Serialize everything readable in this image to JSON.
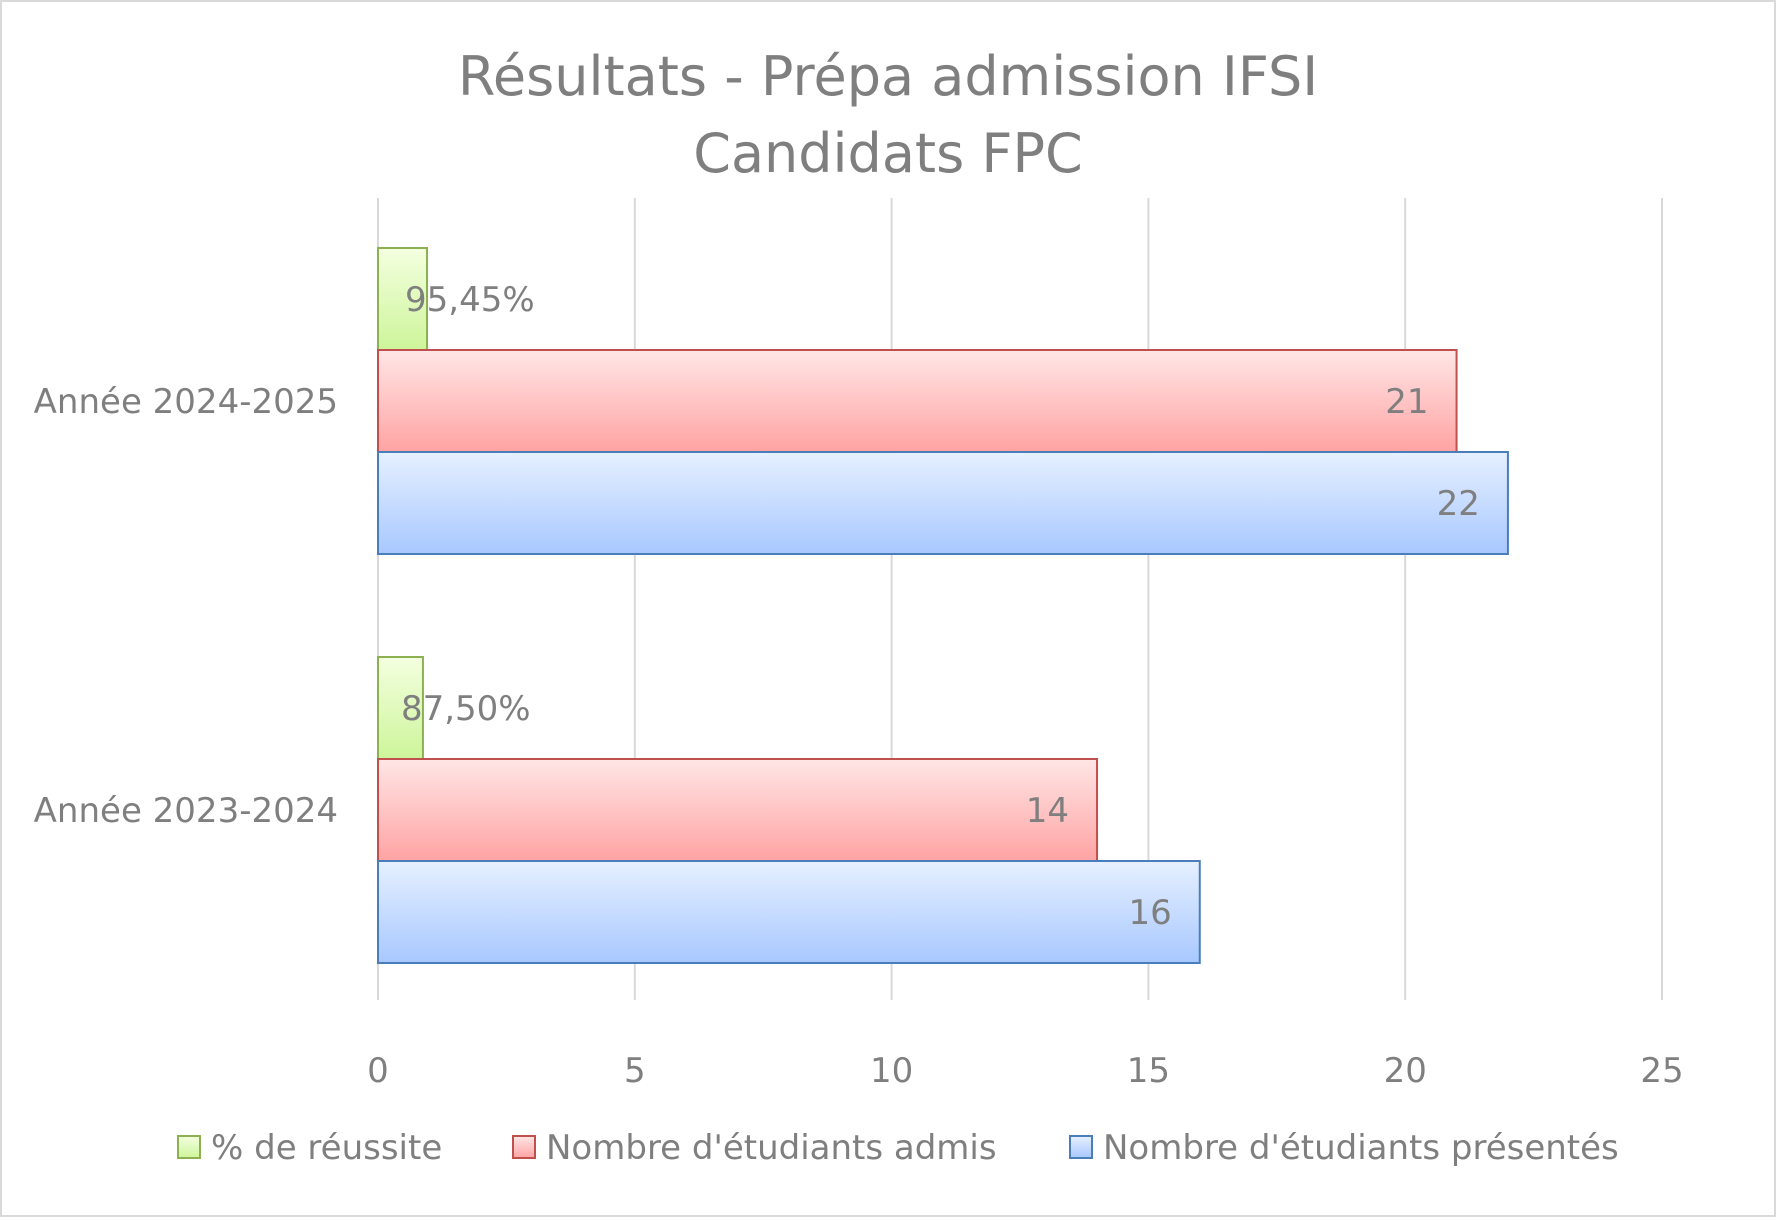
{
  "chart_data": {
    "type": "bar",
    "orientation": "horizontal",
    "title_lines": [
      "Résultats - Prépa admission IFSI",
      "Candidats FPC"
    ],
    "categories": [
      "Année 2024-2025",
      "Année 2023-2024"
    ],
    "series": [
      {
        "name": "% de réussite",
        "values": [
          0.9545,
          0.875
        ],
        "labels": [
          "95,45%",
          "87,50%"
        ],
        "fill_top": "#f4ffe0",
        "fill_bottom": "#cdf59a",
        "stroke": "#8db050"
      },
      {
        "name": "Nombre d'étudiants admis",
        "values": [
          21,
          14
        ],
        "labels": [
          "21",
          "14"
        ],
        "fill_top": "#ffe6e6",
        "fill_bottom": "#ffa3a3",
        "stroke": "#c0504d"
      },
      {
        "name": "Nombre d'étudiants présentés",
        "values": [
          22,
          16
        ],
        "labels": [
          "22",
          "16"
        ],
        "fill_top": "#e6f0ff",
        "fill_bottom": "#a8c8ff",
        "stroke": "#4a7ebb"
      }
    ],
    "x_ticks": [
      "0",
      "5",
      "10",
      "15",
      "20",
      "25"
    ],
    "xlim": [
      0,
      25
    ],
    "grid": true,
    "legend_position": "bottom",
    "text_color": "#7f7f7f",
    "grid_color": "#d9d9d9"
  }
}
